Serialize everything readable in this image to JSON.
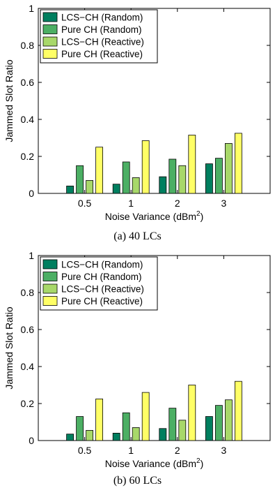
{
  "chart_data": [
    {
      "type": "bar",
      "caption": "(a) 40 LCs",
      "categories": [
        "0.5",
        "1",
        "2",
        "3"
      ],
      "xlabel": "Noise Variance (dBm",
      "xlabel_sup": "2",
      "xlabel_suffix": ")",
      "ylabel": "Jammed Slot Ratio",
      "ylim": [
        0,
        1
      ],
      "yticks": [
        "0",
        "0.2",
        "0.4",
        "0.6",
        "0.8",
        "1"
      ],
      "legend_position": "top-left",
      "series": [
        {
          "name": "LCS−CH (Random)",
          "color": "#007f5f",
          "values": [
            0.04,
            0.05,
            0.09,
            0.16
          ]
        },
        {
          "name": "Pure CH (Random)",
          "color": "#4caf64",
          "values": [
            0.15,
            0.17,
            0.185,
            0.19
          ]
        },
        {
          "name": "LCS−CH (Reactive)",
          "color": "#a8d86a",
          "values": [
            0.07,
            0.085,
            0.15,
            0.27
          ]
        },
        {
          "name": "Pure CH (Reactive)",
          "color": "#ffff66",
          "values": [
            0.25,
            0.285,
            0.315,
            0.325
          ]
        }
      ]
    },
    {
      "type": "bar",
      "caption": "(b) 60 LCs",
      "categories": [
        "0.5",
        "1",
        "2",
        "3"
      ],
      "xlabel": "Noise Variance (dBm",
      "xlabel_sup": "2",
      "xlabel_suffix": ")",
      "ylabel": "Jammed Slot Ratio",
      "ylim": [
        0,
        1
      ],
      "yticks": [
        "0",
        "0.2",
        "0.4",
        "0.6",
        "0.8",
        "1"
      ],
      "legend_position": "top-left",
      "series": [
        {
          "name": "LCS−CH (Random)",
          "color": "#007f5f",
          "values": [
            0.035,
            0.04,
            0.065,
            0.13
          ]
        },
        {
          "name": "Pure CH (Random)",
          "color": "#4caf64",
          "values": [
            0.13,
            0.15,
            0.175,
            0.19
          ]
        },
        {
          "name": "LCS−CH (Reactive)",
          "color": "#a8d86a",
          "values": [
            0.055,
            0.07,
            0.11,
            0.22
          ]
        },
        {
          "name": "Pure CH (Reactive)",
          "color": "#ffff66",
          "values": [
            0.225,
            0.26,
            0.3,
            0.32
          ]
        }
      ]
    }
  ]
}
